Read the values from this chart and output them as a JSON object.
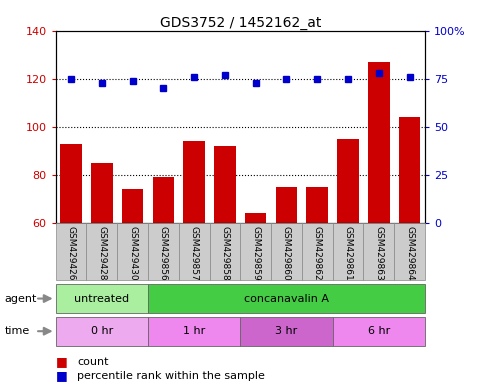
{
  "title": "GDS3752 / 1452162_at",
  "samples": [
    "GSM429426",
    "GSM429428",
    "GSM429430",
    "GSM429856",
    "GSM429857",
    "GSM429858",
    "GSM429859",
    "GSM429860",
    "GSM429862",
    "GSM429861",
    "GSM429863",
    "GSM429864"
  ],
  "count_values": [
    93,
    85,
    74,
    79,
    94,
    92,
    64,
    75,
    75,
    95,
    127,
    104
  ],
  "percentile_values": [
    75,
    73,
    74,
    70,
    76,
    77,
    73,
    75,
    75,
    75,
    78,
    76
  ],
  "ylim_left": [
    60,
    140
  ],
  "ylim_right": [
    0,
    100
  ],
  "yticks_left": [
    60,
    80,
    100,
    120,
    140
  ],
  "yticks_right": [
    0,
    25,
    50,
    75,
    100
  ],
  "ytick_labels_right": [
    "0",
    "25",
    "50",
    "75",
    "100%"
  ],
  "bar_color": "#cc0000",
  "dot_color": "#0000cc",
  "agent_row": [
    {
      "label": "untreated",
      "start": 0,
      "end": 3,
      "color": "#aaeea0"
    },
    {
      "label": "concanavalin A",
      "start": 3,
      "end": 12,
      "color": "#44cc44"
    }
  ],
  "time_row": [
    {
      "label": "0 hr",
      "start": 0,
      "end": 3,
      "color": "#eeaaee"
    },
    {
      "label": "1 hr",
      "start": 3,
      "end": 6,
      "color": "#ee88ee"
    },
    {
      "label": "3 hr",
      "start": 6,
      "end": 9,
      "color": "#cc66cc"
    },
    {
      "label": "6 hr",
      "start": 9,
      "end": 12,
      "color": "#ee88ee"
    }
  ],
  "legend_count_color": "#cc0000",
  "legend_dot_color": "#0000cc",
  "bg_color": "#ffffff",
  "tick_bg_color": "#cccccc",
  "title_fontsize": 10
}
